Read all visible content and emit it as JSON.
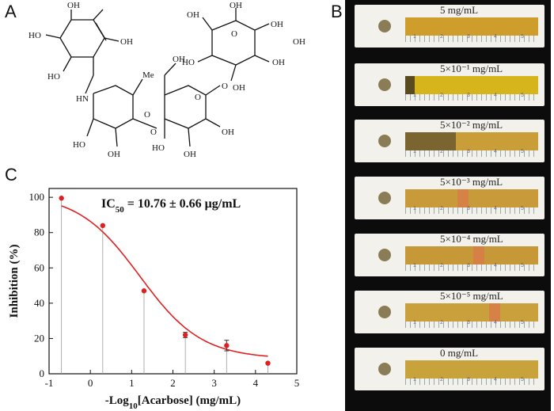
{
  "panels": {
    "a": {
      "letter": "A"
    },
    "b": {
      "letter": "B"
    },
    "c": {
      "letter": "C"
    }
  },
  "structure": {
    "labels": [
      "OH",
      "HO",
      "OH",
      "HO",
      "HN",
      "Me",
      "O",
      "OH",
      "HO",
      "O",
      "HO",
      "OH",
      "OH",
      "O",
      "O",
      "OH",
      "OH",
      "OH",
      "OH",
      "O",
      "OH",
      "OH",
      "HO",
      "OH"
    ]
  },
  "strips": [
    {
      "label": "5 mg/mL",
      "channel_color": "#cf9d2c"
    },
    {
      "label": "5×10⁻¹ mg/mL",
      "channel_color": "#d6b51c"
    },
    {
      "label": "5×10⁻² mg/mL",
      "channel_color": "#c99d38"
    },
    {
      "label": "5×10⁻³ mg/mL",
      "channel_color": "#c89a3a"
    },
    {
      "label": "5×10⁻⁴ mg/mL",
      "channel_color": "#c79838"
    },
    {
      "label": "5×10⁻⁵ mg/mL",
      "channel_color": "#c9a03c"
    },
    {
      "label": "0 mg/mL",
      "channel_color": "#c8a23a"
    }
  ],
  "ruler_numbers": [
    "1",
    "2",
    "3",
    "4",
    "5"
  ],
  "chart_data": {
    "type": "scatter",
    "annotation": "IC50 = 10.76 ± 0.66 μg/mL",
    "annotation_main": "IC",
    "annotation_sub": "50",
    "annotation_rest": " = 10.76 ± 0.66 μg/mL",
    "xlabel": "-Log10[Acarbose] (mg/mL)",
    "xlabel_prefix": "-Log",
    "xlabel_sub": "10",
    "xlabel_rest": "[Acarbose] (mg/mL)",
    "ylabel": "Inhibition (%)",
    "xlim": [
      -1,
      5
    ],
    "ylim": [
      0,
      105
    ],
    "xticks": [
      -1,
      0,
      1,
      2,
      3,
      4,
      5
    ],
    "yticks": [
      0,
      20,
      40,
      60,
      80,
      100
    ],
    "points": [
      {
        "x": -0.7,
        "y": 99.5,
        "err": 0.5
      },
      {
        "x": 0.3,
        "y": 84,
        "err": 0.8
      },
      {
        "x": 1.3,
        "y": 47,
        "err": 0.8
      },
      {
        "x": 2.3,
        "y": 22,
        "err": 1.5
      },
      {
        "x": 3.3,
        "y": 16,
        "err": 3.0
      },
      {
        "x": 4.3,
        "y": 6,
        "err": 0.5
      }
    ],
    "fit_curve": {
      "bottom": 8.5,
      "top": 102,
      "x50": 1.2,
      "hill": 0.58
    },
    "marker_color": "#e02020",
    "curve_color": "#e02020"
  }
}
